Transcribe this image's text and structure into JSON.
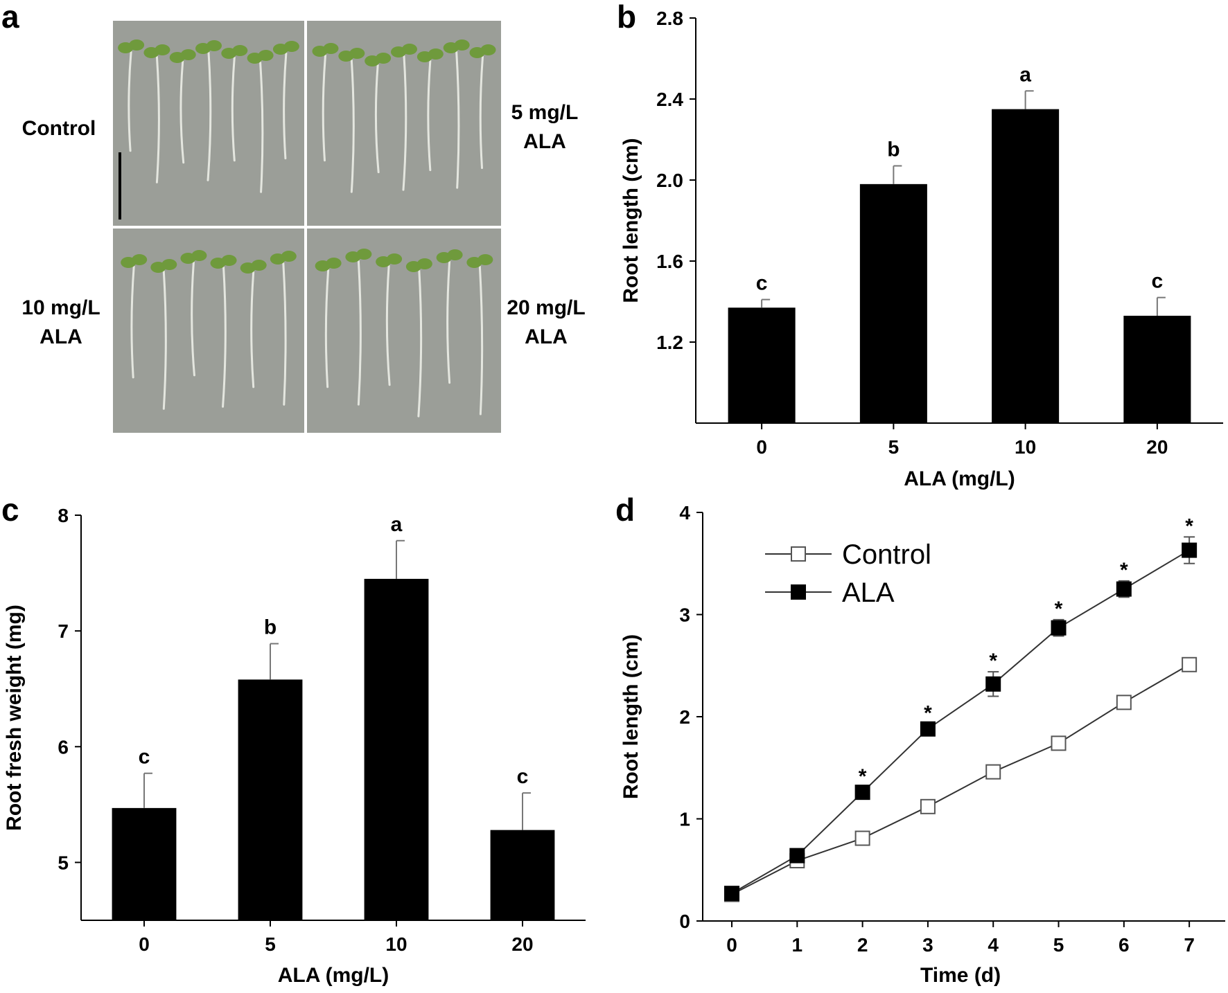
{
  "panels": {
    "a": {
      "letter": "a",
      "labels": {
        "control": "Control",
        "alo5_line1": "5 mg/L",
        "alo5_line2": "ALA",
        "alo10_line1": "10 mg/L",
        "alo10_line2": "ALA",
        "alo20_line1": "20 mg/L",
        "alo20_line2": "ALA"
      },
      "colors": {
        "background": "#9b9e98",
        "root": "#e4e6df",
        "leaf": "#6f9a3c",
        "scale_bar": "#000000"
      }
    },
    "b": {
      "letter": "b"
    },
    "c": {
      "letter": "c"
    },
    "d": {
      "letter": "d"
    }
  },
  "chart_data": [
    {
      "panel": "b",
      "type": "bar",
      "categories": [
        "0",
        "5",
        "10",
        "20"
      ],
      "values": [
        1.37,
        1.98,
        2.35,
        1.33
      ],
      "errors": [
        0.04,
        0.09,
        0.09,
        0.09
      ],
      "significance": [
        "c",
        "b",
        "a",
        "c"
      ],
      "xlabel": "ALA (mg/L)",
      "ylabel": "Root length (cm)",
      "ylim": [
        0.8,
        2.8
      ],
      "yticks": [
        "1.2",
        "1.6",
        "2.0",
        "2.4",
        "2.8"
      ],
      "bar_color": "#000000",
      "grid": false
    },
    {
      "panel": "c",
      "type": "bar",
      "categories": [
        "0",
        "5",
        "10",
        "20"
      ],
      "values": [
        5.47,
        6.58,
        7.45,
        5.28
      ],
      "errors": [
        0.3,
        0.31,
        0.33,
        0.32
      ],
      "significance": [
        "c",
        "b",
        "a",
        "c"
      ],
      "xlabel": "ALA (mg/L)",
      "ylabel": "Root fresh weight (mg)",
      "ylim": [
        4.5,
        8
      ],
      "yticks": [
        "5",
        "6",
        "7",
        "8"
      ],
      "bar_color": "#000000",
      "grid": false
    },
    {
      "panel": "d",
      "type": "line",
      "x": [
        0,
        1,
        2,
        3,
        4,
        5,
        6,
        7
      ],
      "xticks": [
        "0",
        "1",
        "2",
        "3",
        "4",
        "5",
        "6",
        "7"
      ],
      "series": [
        {
          "name": "Control",
          "marker": "open-square",
          "values": [
            0.26,
            0.59,
            0.81,
            1.12,
            1.46,
            1.74,
            2.14,
            2.51
          ],
          "errors": [
            0.02,
            0.03,
            0.04,
            0.04,
            0.05,
            0.05,
            0.05,
            0.06
          ]
        },
        {
          "name": "ALA",
          "marker": "filled-square",
          "values": [
            0.27,
            0.64,
            1.26,
            1.88,
            2.32,
            2.87,
            3.25,
            3.63
          ],
          "errors": [
            0.02,
            0.03,
            0.05,
            0.05,
            0.12,
            0.08,
            0.08,
            0.13
          ]
        }
      ],
      "significance_marker": "*",
      "significance_at": [
        2,
        3,
        4,
        5,
        6,
        7
      ],
      "xlabel": "Time (d)",
      "ylabel": "Root length (cm)",
      "ylim": [
        0,
        4
      ],
      "yticks": [
        "0",
        "1",
        "2",
        "3",
        "4"
      ],
      "legend_position": "top-left",
      "grid": false
    }
  ]
}
